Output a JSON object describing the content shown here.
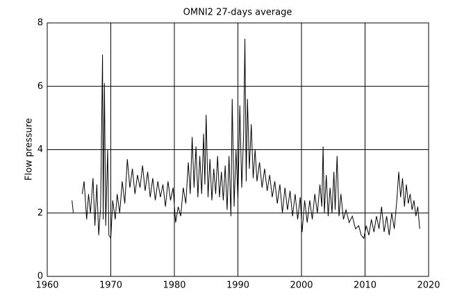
{
  "chart_data": {
    "type": "line",
    "title": "OMNI2 27-days average",
    "y_label": "Flow pressure",
    "xlim": [
      1960,
      2020
    ],
    "xticks": [
      1960,
      1970,
      1980,
      1990,
      2000,
      2010,
      2020
    ],
    "ylim": [
      0,
      8
    ],
    "yticks": [
      0,
      2,
      4,
      6,
      8
    ],
    "grid": true,
    "x": [
      1963.9,
      1964.1,
      1964.8,
      1965.5,
      1965.8,
      1966.2,
      1966.5,
      1966.8,
      1967.2,
      1967.5,
      1967.8,
      1968.1,
      1968.4,
      1968.7,
      1968.8,
      1969.0,
      1969.2,
      1969.5,
      1969.7,
      1970.0,
      1970.3,
      1970.7,
      1971.0,
      1971.4,
      1971.8,
      1972.2,
      1972.6,
      1973.0,
      1973.4,
      1973.8,
      1974.2,
      1974.6,
      1975.0,
      1975.4,
      1975.8,
      1976.2,
      1976.6,
      1977.0,
      1977.4,
      1977.8,
      1978.2,
      1978.6,
      1979.0,
      1979.4,
      1979.8,
      1980.2,
      1980.6,
      1981.0,
      1981.4,
      1981.8,
      1982.2,
      1982.5,
      1982.8,
      1983.1,
      1983.4,
      1983.7,
      1984.0,
      1984.3,
      1984.6,
      1984.8,
      1985.0,
      1985.3,
      1985.6,
      1985.9,
      1986.2,
      1986.5,
      1986.8,
      1987.1,
      1987.4,
      1987.7,
      1988.0,
      1988.3,
      1988.6,
      1988.9,
      1989.1,
      1989.4,
      1989.7,
      1990.0,
      1990.3,
      1990.6,
      1990.9,
      1991.1,
      1991.3,
      1991.5,
      1991.8,
      1992.1,
      1992.4,
      1992.7,
      1993.0,
      1993.4,
      1993.8,
      1994.2,
      1994.6,
      1995.0,
      1995.4,
      1995.8,
      1996.2,
      1996.6,
      1997.0,
      1997.4,
      1997.8,
      1998.2,
      1998.6,
      1999.0,
      1999.4,
      1999.8,
      2000.1,
      2000.5,
      2000.9,
      2001.3,
      2001.7,
      2002.1,
      2002.5,
      2002.9,
      2003.2,
      2003.4,
      2003.6,
      2003.9,
      2004.2,
      2004.5,
      2004.8,
      2005.1,
      2005.3,
      2005.6,
      2005.9,
      2006.2,
      2006.6,
      2007.0,
      2007.5,
      2008.0,
      2008.5,
      2009.0,
      2009.4,
      2009.8,
      2010.2,
      2010.6,
      2011.0,
      2011.4,
      2011.8,
      2012.2,
      2012.6,
      2013.0,
      2013.4,
      2013.8,
      2014.2,
      2014.6,
      2015.0,
      2015.3,
      2015.6,
      2015.9,
      2016.2,
      2016.5,
      2016.8,
      2017.1,
      2017.4,
      2017.7,
      2018.0,
      2018.3,
      2018.6
    ],
    "series": [
      {
        "name": "Flow pressure",
        "color": "#000000",
        "values": [
          2.4,
          2.0,
          null,
          2.6,
          3.0,
          1.8,
          2.6,
          2.0,
          3.1,
          1.6,
          2.9,
          1.3,
          2.2,
          7.0,
          1.8,
          6.1,
          1.6,
          4.0,
          1.3,
          1.2,
          2.4,
          1.8,
          2.6,
          2.0,
          3.0,
          2.3,
          3.7,
          2.8,
          3.4,
          2.6,
          3.2,
          2.8,
          3.5,
          2.7,
          3.3,
          2.5,
          3.1,
          2.4,
          3.0,
          2.5,
          2.9,
          2.2,
          3.0,
          2.4,
          2.8,
          1.7,
          2.2,
          1.9,
          2.8,
          2.3,
          3.6,
          2.6,
          4.4,
          2.8,
          4.1,
          2.5,
          3.8,
          2.6,
          4.5,
          2.9,
          5.1,
          2.5,
          3.7,
          2.4,
          3.4,
          2.6,
          3.8,
          2.5,
          3.3,
          2.4,
          3.5,
          2.1,
          3.8,
          1.9,
          5.6,
          2.2,
          4.0,
          2.4,
          5.4,
          2.8,
          4.5,
          7.5,
          3.0,
          5.6,
          3.4,
          4.8,
          3.1,
          4.0,
          3.0,
          3.6,
          2.8,
          3.4,
          2.7,
          3.2,
          2.5,
          3.0,
          2.3,
          2.9,
          2.0,
          2.8,
          2.1,
          2.7,
          1.9,
          2.6,
          1.8,
          2.5,
          1.4,
          2.4,
          1.7,
          2.4,
          1.8,
          2.6,
          2.0,
          2.9,
          2.2,
          4.1,
          2.0,
          3.2,
          1.9,
          2.8,
          2.0,
          3.3,
          2.1,
          3.8,
          1.9,
          2.6,
          1.8,
          2.1,
          1.7,
          1.9,
          1.5,
          1.6,
          1.3,
          1.2,
          1.6,
          1.3,
          1.8,
          1.4,
          1.9,
          1.5,
          2.2,
          1.4,
          1.9,
          1.3,
          2.0,
          1.5,
          2.4,
          3.3,
          2.5,
          3.1,
          2.2,
          2.9,
          2.3,
          2.6,
          2.1,
          2.4,
          1.9,
          2.2,
          1.5
        ]
      }
    ]
  }
}
